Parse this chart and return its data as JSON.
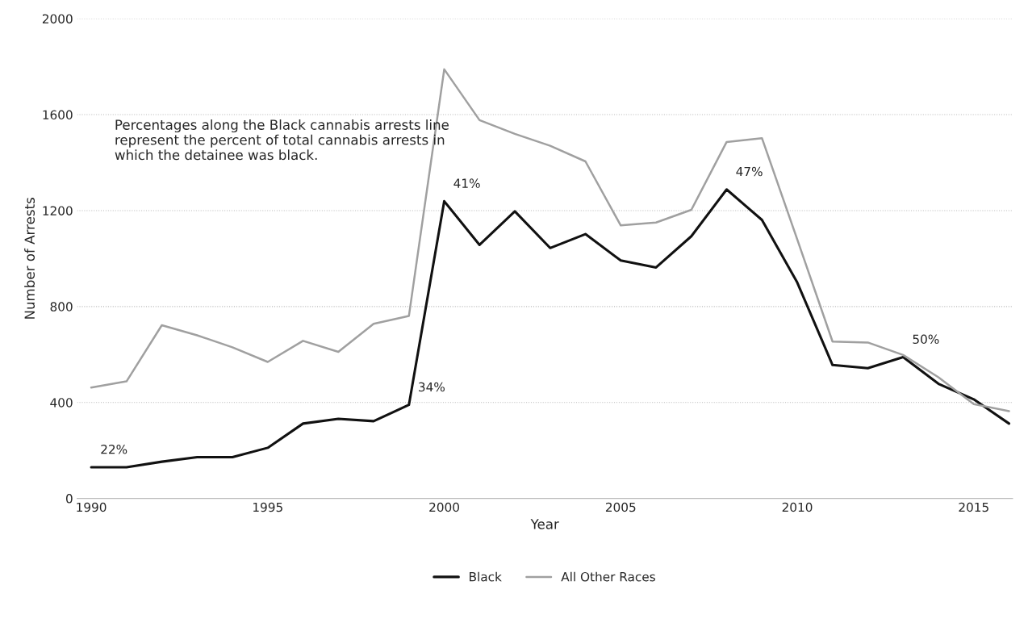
{
  "chart_data": {
    "type": "line",
    "xlabel": "Year",
    "ylabel": "Number of Arrests",
    "x": [
      1990,
      1991,
      1992,
      1993,
      1994,
      1995,
      1996,
      1997,
      1998,
      1999,
      2000,
      2001,
      2002,
      2003,
      2004,
      2005,
      2006,
      2007,
      2008,
      2009,
      2010,
      2011,
      2012,
      2013,
      2014,
      2015,
      2016
    ],
    "series": [
      {
        "name": "Black",
        "color": "#111111",
        "values": [
          130,
          130,
          153,
          172,
          172,
          211,
          312,
          332,
          322,
          390,
          1239,
          1057,
          1197,
          1044,
          1102,
          992,
          963,
          1093,
          1288,
          1161,
          900,
          556,
          543,
          589,
          478,
          413,
          312
        ]
      },
      {
        "name": "All Other Races",
        "color": "#a0a0a0",
        "values": [
          462,
          488,
          722,
          680,
          630,
          569,
          657,
          611,
          728,
          761,
          1789,
          1577,
          1520,
          1470,
          1405,
          1138,
          1150,
          1203,
          1486,
          1502,
          1080,
          654,
          650,
          598,
          505,
          393,
          364
        ]
      }
    ],
    "xlim": [
      1989.6,
      2016.1
    ],
    "xticks": [
      1990,
      1995,
      2000,
      2005,
      2010,
      2015
    ],
    "ylim": [
      0,
      2000
    ],
    "yticks": [
      0,
      400,
      800,
      1200,
      1600,
      2000
    ],
    "grid": "y",
    "legend": "bottom",
    "marker": "none",
    "line_style": "solid",
    "annotations": [
      {
        "text": "22%",
        "x": 1990,
        "y": 130
      },
      {
        "text": "34%",
        "x": 1999,
        "y": 390
      },
      {
        "text": "41%",
        "x": 2000,
        "y": 1239
      },
      {
        "text": "47%",
        "x": 2008,
        "y": 1288
      },
      {
        "text": "50%",
        "x": 2013,
        "y": 589
      },
      "Percentages along the Black cannabis arrests line represent the percent of total cannabis arrests in which the detainee was black."
    ]
  }
}
